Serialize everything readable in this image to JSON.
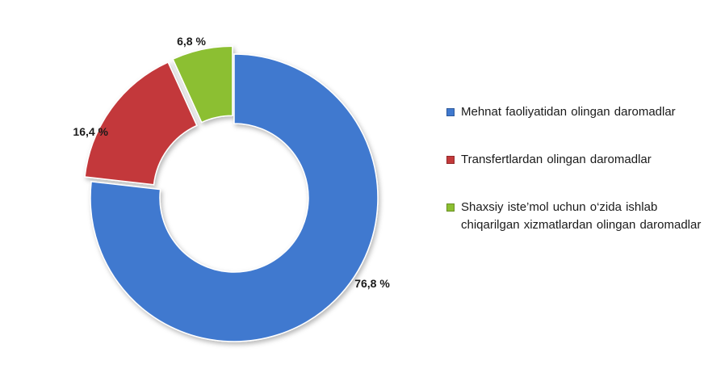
{
  "chart_data": {
    "type": "pie",
    "donut": true,
    "title": "",
    "slices": [
      {
        "label": "Mehnat faoliyatidan olingan daromadlar",
        "value": 76.8,
        "display": "76,8 %",
        "color": "#3f79cf"
      },
      {
        "label": "Transfertlardan olingan daromadlar",
        "value": 16.4,
        "display": "16,4 %",
        "color": "#c3393a"
      },
      {
        "label": "Shaxsiy iste’mol uchun o‘zida ishlab chiqarilgan xizmatlardan olingan daromadlar",
        "value": 6.8,
        "display": "6,8 %",
        "color": "#8cbf31"
      }
    ],
    "legend_position": "right"
  }
}
